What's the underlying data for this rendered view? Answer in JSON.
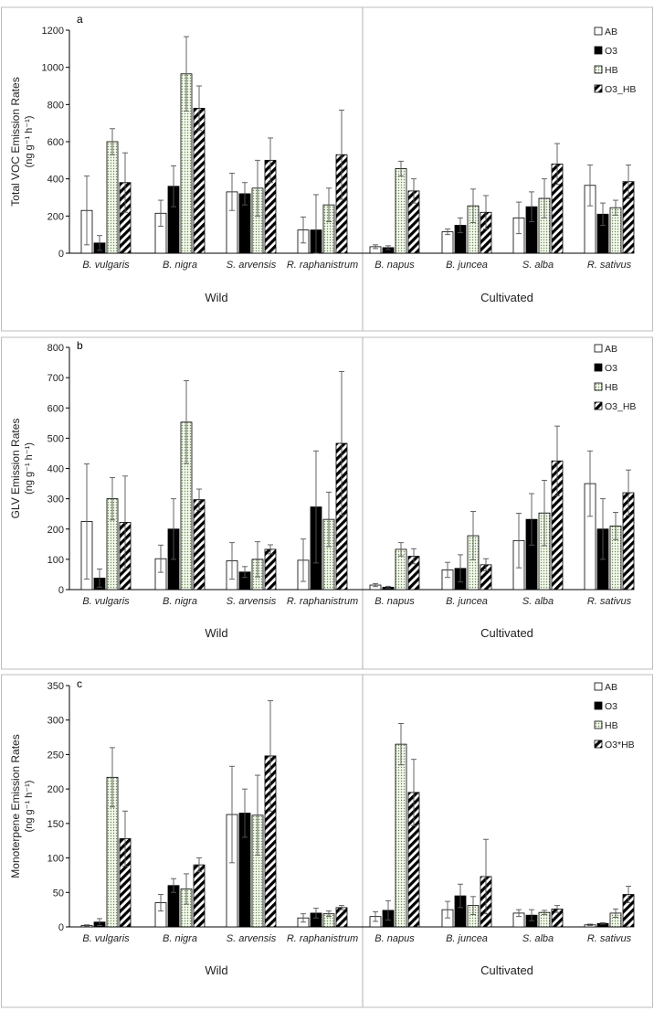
{
  "patterns": [
    "open",
    "solid",
    "dotted",
    "hatched"
  ],
  "colors": {
    "frame": "#bdbdbd",
    "bar_stroke": "#000000",
    "solid": "#000000",
    "dots": "#6a8f4a",
    "error": "#555555"
  },
  "chart_data": [
    {
      "type": "bar",
      "panel_label": "a",
      "ylabel_line1": "Total VOC Emission Rates",
      "ylabel_line2": "(ng g⁻¹ h⁻¹)",
      "ylim": [
        0,
        1200
      ],
      "ytick_step": 200,
      "yticks": [
        "0",
        "200",
        "400",
        "600",
        "800",
        "1000",
        "1200"
      ],
      "categories": [
        "B. vulgaris",
        "B. nigra",
        "S. arvensis",
        "R. raphanistrum",
        "B. napus",
        "B. juncea",
        "S. alba",
        "R. sativus"
      ],
      "groups": [
        "Wild",
        "Cultivated"
      ],
      "legend": [
        "AB",
        "O3",
        "HB",
        "O3_HB"
      ],
      "series": [
        {
          "name": "AB",
          "values": [
            230,
            215,
            330,
            125,
            35,
            115,
            190,
            365
          ],
          "errors": [
            185,
            70,
            100,
            70,
            10,
            15,
            85,
            110
          ]
        },
        {
          "name": "O3",
          "values": [
            55,
            360,
            320,
            125,
            30,
            150,
            250,
            210
          ],
          "errors": [
            40,
            110,
            60,
            190,
            10,
            40,
            80,
            60
          ]
        },
        {
          "name": "HB",
          "values": [
            600,
            965,
            350,
            260,
            455,
            255,
            295,
            245
          ],
          "errors": [
            70,
            200,
            150,
            90,
            40,
            90,
            105,
            40
          ]
        },
        {
          "name": "O3_HB",
          "values": [
            380,
            780,
            500,
            530,
            335,
            220,
            480,
            385
          ],
          "errors": [
            160,
            120,
            120,
            240,
            65,
            90,
            110,
            90
          ]
        }
      ]
    },
    {
      "type": "bar",
      "panel_label": "b",
      "ylabel_line1": "GLV Emission Rates",
      "ylabel_line2": "(ng g⁻¹ h⁻¹)",
      "ylim": [
        0,
        800
      ],
      "ytick_step": 100,
      "yticks": [
        "0",
        "100",
        "200",
        "300",
        "400",
        "500",
        "600",
        "700",
        "800"
      ],
      "categories": [
        "B. vulgaris",
        "B. nigra",
        "S. arvensis",
        "R. raphanistrum",
        "B. napus",
        "B. juncea",
        "S. alba",
        "R. sativus"
      ],
      "groups": [
        "Wild",
        "Cultivated"
      ],
      "legend": [
        "AB",
        "O3",
        "HB",
        "O3_HB"
      ],
      "series": [
        {
          "name": "AB",
          "values": [
            225,
            102,
            95,
            97,
            15,
            65,
            162,
            350
          ],
          "errors": [
            190,
            45,
            60,
            70,
            5,
            25,
            90,
            108
          ]
        },
        {
          "name": "O3",
          "values": [
            38,
            200,
            58,
            273,
            8,
            70,
            232,
            200
          ],
          "errors": [
            30,
            100,
            18,
            185,
            3,
            45,
            85,
            100
          ]
        },
        {
          "name": "HB",
          "values": [
            300,
            553,
            100,
            232,
            133,
            178,
            253,
            210
          ],
          "errors": [
            70,
            137,
            58,
            90,
            22,
            80,
            108,
            45
          ]
        },
        {
          "name": "O3_HB",
          "values": [
            222,
            297,
            133,
            483,
            110,
            82,
            425,
            320
          ],
          "errors": [
            153,
            35,
            15,
            237,
            25,
            20,
            115,
            75
          ]
        }
      ]
    },
    {
      "type": "bar",
      "panel_label": "c",
      "ylabel_line1": "Monoterpene Emission Rates",
      "ylabel_line2": "(ng g⁻¹ h⁻¹)",
      "ylim": [
        0,
        350
      ],
      "ytick_step": 50,
      "yticks": [
        "0",
        "50",
        "100",
        "150",
        "200",
        "250",
        "300",
        "350"
      ],
      "categories": [
        "B. vulgaris",
        "B. nigra",
        "S. arvensis",
        "R. raphanistrum",
        "B. napus",
        "B. juncea",
        "S. alba",
        "R. sativus"
      ],
      "groups": [
        "Wild",
        "Cultivated"
      ],
      "legend": [
        "AB",
        "O3",
        "HB",
        "O3*HB"
      ],
      "series": [
        {
          "name": "AB",
          "values": [
            2,
            35,
            163,
            13,
            15,
            25,
            20,
            3
          ],
          "errors": [
            1,
            12,
            70,
            6,
            7,
            12,
            5,
            1
          ]
        },
        {
          "name": "O3",
          "values": [
            7,
            60,
            165,
            20,
            24,
            45,
            17,
            5
          ],
          "errors": [
            5,
            10,
            35,
            7,
            14,
            17,
            8,
            1
          ]
        },
        {
          "name": "HB",
          "values": [
            217,
            55,
            162,
            19,
            265,
            31,
            21,
            20
          ],
          "errors": [
            43,
            22,
            58,
            4,
            30,
            13,
            3,
            6
          ]
        },
        {
          "name": "O3*HB",
          "values": [
            128,
            90,
            248,
            28,
            195,
            73,
            26,
            47
          ],
          "errors": [
            40,
            10,
            80,
            3,
            48,
            54,
            5,
            12
          ]
        }
      ]
    }
  ]
}
